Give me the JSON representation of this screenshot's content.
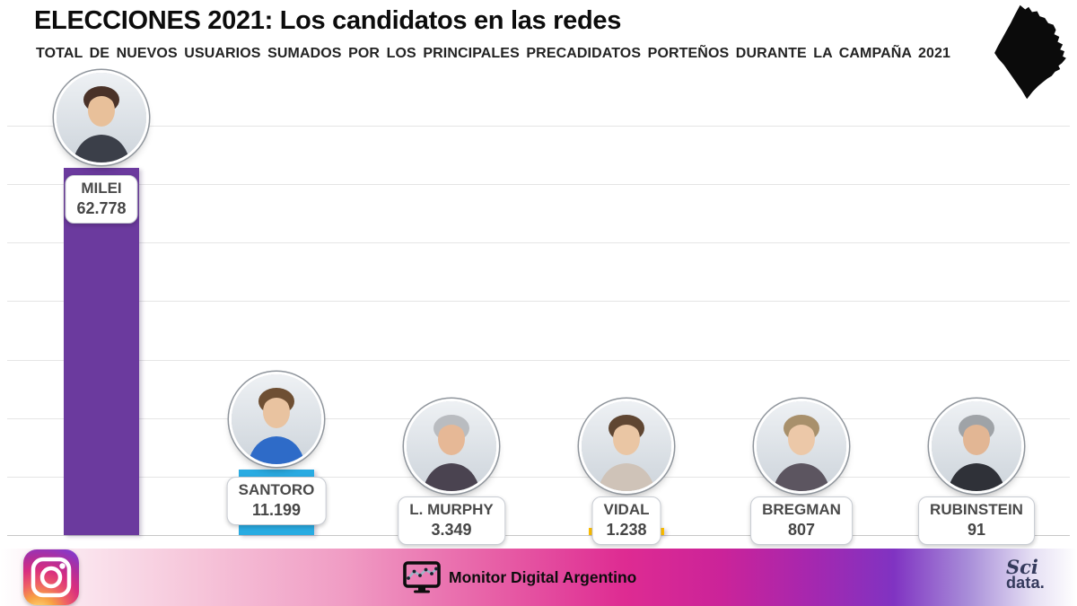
{
  "header": {
    "title": "ELECCIONES 2021: Los candidatos en las redes",
    "subtitle": "TOTAL DE NUEVOS USUARIOS SUMADOS POR LOS PRINCIPALES PRECADIDATOS PORTEÑOS DURANTE LA CAMPAÑA 2021"
  },
  "chart_data": {
    "type": "bar",
    "title": "ELECCIONES 2021: Los candidatos en las redes",
    "subtitle": "TOTAL DE NUEVOS USUARIOS SUMADOS POR LOS PRINCIPALES PRECADIDATOS PORTEÑOS DURANTE LA CAMPAÑA 2021",
    "categories": [
      "MILEI",
      "SANTORO",
      "L. MURPHY",
      "VIDAL",
      "BREGMAN",
      "RUBINSTEIN"
    ],
    "values": [
      62778,
      11199,
      3349,
      1238,
      807,
      91
    ],
    "value_labels": [
      "62.778",
      "11.199",
      "3.349",
      "1.238",
      "807",
      "91"
    ],
    "bar_colors": [
      "#6b3a9e",
      "#29abe2",
      "#c9c9c9",
      "#ffc000",
      "#c9c9c9",
      "#c9c9c9"
    ],
    "xlabel": "",
    "ylabel": "",
    "ylim": [
      0,
      70000
    ],
    "gridline_interval": 10000,
    "grid": true,
    "legend": false
  },
  "avatars": [
    {
      "hair": "#4a3228",
      "skin": "#e8c09a",
      "body": "#3b3f49"
    },
    {
      "hair": "#6e4f33",
      "skin": "#e9c3a0",
      "body": "#2e6bc8"
    },
    {
      "hair": "#b9bcc0",
      "skin": "#e6b896",
      "body": "#4a4350"
    },
    {
      "hair": "#5f4632",
      "skin": "#eac6a4",
      "body": "#cfc3b8"
    },
    {
      "hair": "#a8906b",
      "skin": "#ecc8a8",
      "body": "#5c5560"
    },
    {
      "hair": "#9fa3a7",
      "skin": "#e2b694",
      "body": "#2f3138"
    }
  ],
  "footer": {
    "brand_text": "Monitor Digital Argentino",
    "logo_line1": "Sci",
    "logo_line2": "data.",
    "icons": [
      "instagram-icon",
      "monitor-chart-icon"
    ]
  },
  "decor": {
    "top_right_icon": "caba-map-silhouette",
    "map_color": "#0b0b0b",
    "grid_color": "#e5e5e5",
    "footer_magenta": "#de2b92",
    "footer_purple": "#8033c2"
  }
}
